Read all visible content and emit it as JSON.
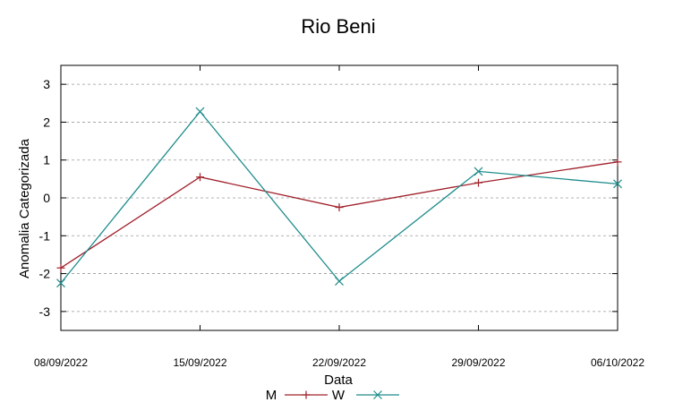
{
  "chart_data": {
    "type": "line",
    "title": "Rio Beni",
    "xlabel": "Data",
    "ylabel": "Anomalia Categorizada",
    "categories": [
      "08/09/2022",
      "15/09/2022",
      "22/09/2022",
      "29/09/2022",
      "06/10/2022"
    ],
    "yticks": [
      "3",
      "2",
      "1",
      "0",
      "-1",
      "-2",
      "-3"
    ],
    "ylim": [
      -3.5,
      3.5
    ],
    "grid": true,
    "legend_position": "bottom",
    "series": [
      {
        "name": "M",
        "color": "#a0202a",
        "marker": "plus",
        "values": [
          -1.85,
          0.55,
          -0.25,
          0.4,
          0.95
        ]
      },
      {
        "name": "W",
        "color": "#1f8c8c",
        "marker": "cross",
        "values": [
          -2.25,
          2.28,
          -2.2,
          0.7,
          0.37
        ]
      }
    ]
  }
}
